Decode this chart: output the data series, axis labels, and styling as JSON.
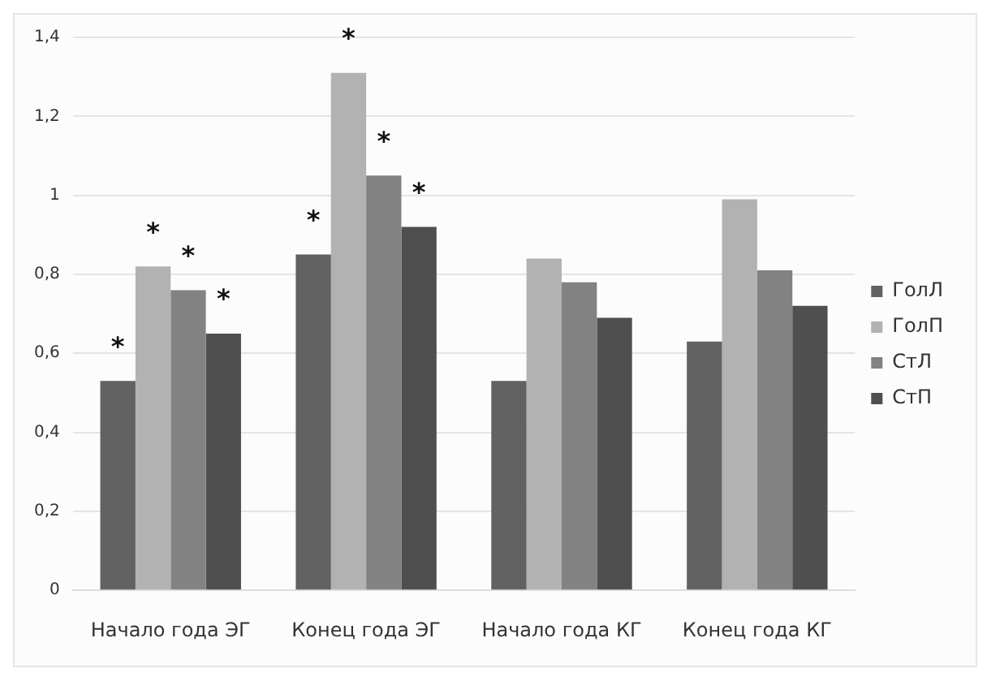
{
  "chart_data": {
    "type": "bar",
    "categories": [
      "Начало года ЭГ",
      "Конец года ЭГ",
      "Начало года КГ",
      "Конец года КГ"
    ],
    "series": [
      {
        "name": "ГолЛ",
        "color": "#626262",
        "values": [
          0.53,
          0.85,
          0.53,
          0.63
        ]
      },
      {
        "name": "ГолП",
        "color": "#b2b2b2",
        "values": [
          0.82,
          1.31,
          0.84,
          0.99
        ]
      },
      {
        "name": "СтЛ",
        "color": "#828282",
        "values": [
          0.76,
          1.05,
          0.78,
          0.81
        ]
      },
      {
        "name": "СтП",
        "color": "#4f4f4f",
        "values": [
          0.65,
          0.92,
          0.69,
          0.72
        ]
      }
    ],
    "ylim": [
      0,
      1.4
    ],
    "yticks": [
      0,
      {
        "value": 0.2,
        "label": "0,2"
      },
      {
        "value": 0.4,
        "label": "0,4"
      },
      {
        "value": 0.6,
        "label": "0,6"
      },
      {
        "value": 0.8,
        "label": "0,8"
      },
      1,
      {
        "value": 1.2,
        "label": "1,2"
      },
      {
        "value": 1.4,
        "label": "1,4"
      }
    ],
    "grid": "y",
    "legend": "right",
    "annotations": [
      {
        "text": "*",
        "x": "Начало года ЭГ",
        "y": 0.53
      },
      {
        "text": "*",
        "x": "Начало года ЭГ",
        "y": 0.82
      },
      {
        "text": "*",
        "x": "Начало года ЭГ",
        "y": 0.76
      },
      {
        "text": "*",
        "x": "Начало года ЭГ",
        "y": 0.65
      },
      {
        "text": "*",
        "x": "Конец года ЭГ",
        "y": 0.85
      },
      {
        "text": "*",
        "x": "Конец года ЭГ",
        "y": 1.31
      },
      {
        "text": "*",
        "x": "Конец года ЭГ",
        "y": 1.05
      },
      {
        "text": "*",
        "x": "Конец года ЭГ",
        "y": 0.92
      }
    ]
  }
}
